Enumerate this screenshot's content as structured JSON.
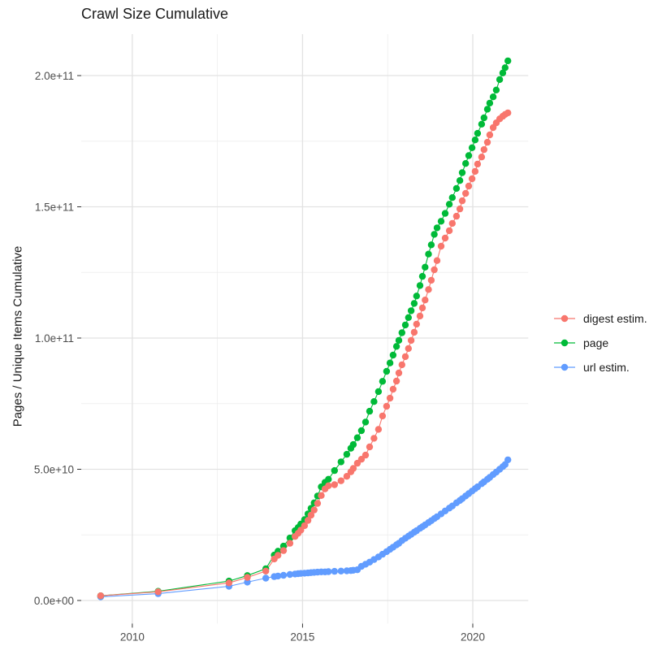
{
  "chart_data": {
    "type": "scatter",
    "title": "Crawl Size Cumulative",
    "xlabel": "",
    "ylabel": "Pages / Unique Items Cumulative",
    "legend_position": "right",
    "grid": true,
    "xlim": [
      2008.5,
      2021.63
    ],
    "ylim": [
      -8800000000.0,
      215800000000.0
    ],
    "x_ticks": {
      "values": [
        2010,
        2015,
        2020
      ],
      "labels": [
        "2010",
        "2015",
        "2020"
      ],
      "minor": [
        2012.5,
        2017.5
      ]
    },
    "y_ticks": {
      "values": [
        0,
        50000000000.0,
        100000000000.0,
        150000000000.0,
        200000000000.0
      ],
      "labels": [
        "0.0e+00",
        "5.0e+10",
        "1.0e+11",
        "1.5e+11",
        "2.0e+11"
      ],
      "minor": [
        25000000000.0,
        75000000000.0,
        125000000000.0,
        175000000000.0
      ]
    },
    "style": {
      "grid_major": "#e2e2e2",
      "grid_minor": "#ececec",
      "tick": "#333333",
      "axis_text": "#4d4d4d",
      "point_radius": 4.2,
      "line_width": 1.1
    },
    "x": [
      2009.07,
      2010.76,
      2012.84,
      2013.38,
      2013.92,
      2014.17,
      2014.28,
      2014.44,
      2014.63,
      2014.78,
      2014.87,
      2014.95,
      2015.06,
      2015.16,
      2015.25,
      2015.34,
      2015.44,
      2015.55,
      2015.66,
      2015.76,
      2015.94,
      2016.13,
      2016.3,
      2016.42,
      2016.49,
      2016.61,
      2016.73,
      2016.85,
      2016.97,
      2017.1,
      2017.23,
      2017.35,
      2017.47,
      2017.57,
      2017.66,
      2017.76,
      2017.83,
      2017.92,
      2018.02,
      2018.11,
      2018.19,
      2018.28,
      2018.35,
      2018.45,
      2018.52,
      2018.6,
      2018.7,
      2018.78,
      2018.87,
      2018.95,
      2019.07,
      2019.19,
      2019.31,
      2019.4,
      2019.52,
      2019.62,
      2019.69,
      2019.79,
      2019.88,
      2019.98,
      2020.07,
      2020.14,
      2020.26,
      2020.33,
      2020.43,
      2020.5,
      2020.6,
      2020.69,
      2020.79,
      2020.88,
      2020.95,
      2021.03
    ],
    "series": [
      {
        "name": "digest estim.",
        "color": "#F8766D",
        "z": 3,
        "values": [
          1800000000.0,
          3300000000.0,
          6700000000.0,
          8800000000.0,
          11200000000.0,
          15800000000.0,
          17200000000.0,
          19000000000.0,
          21800000000.0,
          24400000000.0,
          25600000000.0,
          26800000000.0,
          28500000000.0,
          30500000000.0,
          32500000000.0,
          34500000000.0,
          37000000000.0,
          40000000000.0,
          42500000000.0,
          43700000000.0,
          44100000000.0,
          45600000000.0,
          47300000000.0,
          49000000000.0,
          50300000000.0,
          52300000000.0,
          53800000000.0,
          55400000000.0,
          58500000000.0,
          61800000000.0,
          65200000000.0,
          70300000000.0,
          74000000000.0,
          77100000000.0,
          80500000000.0,
          83600000000.0,
          86700000000.0,
          89800000000.0,
          92900000000.0,
          96000000000.0,
          99100000000.0,
          102200000000.0,
          105300000000.0,
          108400000000.0,
          111500000000.0,
          114500000000.0,
          118500000000.0,
          122000000000.0,
          126000000000.0,
          129500000000.0,
          135000000000.0,
          138100000000.0,
          140900000000.0,
          143700000000.0,
          146400000000.0,
          149200000000.0,
          152300000000.0,
          155100000000.0,
          157900000000.0,
          160700000000.0,
          163500000000.0,
          166300000000.0,
          169000000000.0,
          171800000000.0,
          174600000000.0,
          177400000000.0,
          180200000000.0,
          182000000000.0,
          183500000000.0,
          184500000000.0,
          185200000000.0,
          185800000000.0
        ]
      },
      {
        "name": "page",
        "color": "#00BA38",
        "z": 2,
        "values": [
          1800000000.0,
          3500000000.0,
          7400000000.0,
          9500000000.0,
          12100000000.0,
          17300000000.0,
          18800000000.0,
          20700000000.0,
          23800000000.0,
          26600000000.0,
          27800000000.0,
          29100000000.0,
          30800000000.0,
          33000000000.0,
          35100000000.0,
          37200000000.0,
          39800000000.0,
          43300000000.0,
          45000000000.0,
          46200000000.0,
          49500000000.0,
          52800000000.0,
          55700000000.0,
          58000000000.0,
          59400000000.0,
          62000000000.0,
          64700000000.0,
          68000000000.0,
          72100000000.0,
          75800000000.0,
          79600000000.0,
          83500000000.0,
          87300000000.0,
          90500000000.0,
          93500000000.0,
          96800000000.0,
          99100000000.0,
          102000000000.0,
          105000000000.0,
          107800000000.0,
          110400000000.0,
          113200000000.0,
          116000000000.0,
          120000000000.0,
          123500000000.0,
          127000000000.0,
          132000000000.0,
          135500000000.0,
          139500000000.0,
          142000000000.0,
          144500000000.0,
          147500000000.0,
          151000000000.0,
          153500000000.0,
          157000000000.0,
          160000000000.0,
          163000000000.0,
          166500000000.0,
          169500000000.0,
          172500000000.0,
          175500000000.0,
          178000000000.0,
          181500000000.0,
          183900000000.0,
          187200000000.0,
          189500000000.0,
          191900000000.0,
          194500000000.0,
          198500000000.0,
          201000000000.0,
          203000000000.0,
          205600000000.0
        ]
      },
      {
        "name": "url estim.",
        "color": "#619CFF",
        "z": 1,
        "values": [
          1400000000.0,
          2600000000.0,
          5400000000.0,
          7000000000.0,
          8500000000.0,
          9100000000.0,
          9300000000.0,
          9600000000.0,
          9900000000.0,
          10100000000.0,
          10200000000.0,
          10300000000.0,
          10400000000.0,
          10500000000.0,
          10600000000.0,
          10700000000.0,
          10800000000.0,
          10900000000.0,
          10900000000.0,
          11000000000.0,
          11100000000.0,
          11200000000.0,
          11300000000.0,
          11400000000.0,
          11500000000.0,
          11700000000.0,
          13000000000.0,
          13800000000.0,
          14600000000.0,
          15600000000.0,
          16600000000.0,
          17600000000.0,
          18600000000.0,
          19500000000.0,
          20300000000.0,
          21200000000.0,
          21800000000.0,
          22800000000.0,
          23700000000.0,
          24500000000.0,
          25200000000.0,
          26000000000.0,
          26600000000.0,
          27500000000.0,
          28100000000.0,
          28800000000.0,
          29700000000.0,
          30400000000.0,
          31200000000.0,
          31900000000.0,
          33000000000.0,
          34100000000.0,
          35200000000.0,
          36000000000.0,
          37200000000.0,
          38100000000.0,
          38800000000.0,
          39800000000.0,
          40700000000.0,
          41700000000.0,
          42600000000.0,
          43300000000.0,
          44500000000.0,
          45200000000.0,
          46200000000.0,
          46900000000.0,
          48000000000.0,
          48900000000.0,
          50000000000.0,
          51000000000.0,
          51800000000.0,
          53600000000.0
        ]
      }
    ]
  }
}
